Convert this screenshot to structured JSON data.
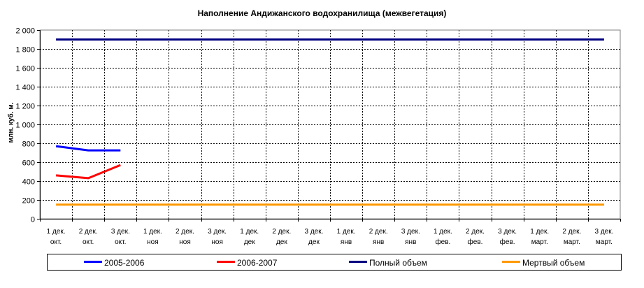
{
  "chart_data": {
    "type": "line",
    "title": "Наполнение Андижанского водохранилища (межвегетация)",
    "xlabel": "",
    "ylabel": "млн. куб. м.",
    "ylim": [
      0,
      2000
    ],
    "yticks": [
      "0",
      "200",
      "400",
      "600",
      "800",
      "1 000",
      "1 200",
      "1 400",
      "1 600",
      "1 800",
      "2 000"
    ],
    "categories": [
      [
        "1 дек.",
        "окт."
      ],
      [
        "2 дек.",
        "окт."
      ],
      [
        "3 дек.",
        "окт."
      ],
      [
        "1 дек.",
        "ноя"
      ],
      [
        "2 дек.",
        "ноя"
      ],
      [
        "3 дек.",
        "ноя"
      ],
      [
        "1 дек.",
        "дек"
      ],
      [
        "2 дек.",
        "дек"
      ],
      [
        "3 дек.",
        "дек"
      ],
      [
        "1 дек.",
        "янв"
      ],
      [
        "2 дек.",
        "янв"
      ],
      [
        "3 дек.",
        "янв"
      ],
      [
        "1 дек.",
        "фев."
      ],
      [
        "2 дек.",
        "фев."
      ],
      [
        "3 дек.",
        "фев."
      ],
      [
        "1 дек.",
        "март."
      ],
      [
        "2 дек.",
        "март."
      ],
      [
        "3 дек.",
        "март."
      ]
    ],
    "series": [
      {
        "name": "2005-2006",
        "color": "#0000ff",
        "values": [
          770,
          725,
          725,
          null,
          null,
          null,
          null,
          null,
          null,
          null,
          null,
          null,
          null,
          null,
          null,
          null,
          null,
          null
        ]
      },
      {
        "name": "2006-2007",
        "color": "#ff0000",
        "values": [
          460,
          430,
          570,
          null,
          null,
          null,
          null,
          null,
          null,
          null,
          null,
          null,
          null,
          null,
          null,
          null,
          null,
          null
        ]
      },
      {
        "name": "Полный объем",
        "color": "#000080",
        "values": [
          1900,
          1900,
          1900,
          1900,
          1900,
          1900,
          1900,
          1900,
          1900,
          1900,
          1900,
          1900,
          1900,
          1900,
          1900,
          1900,
          1900,
          1900
        ]
      },
      {
        "name": "Мертвый объем",
        "color": "#ff9900",
        "values": [
          150,
          150,
          150,
          150,
          150,
          150,
          150,
          150,
          150,
          150,
          150,
          150,
          150,
          150,
          150,
          150,
          150,
          150
        ]
      }
    ],
    "grid": true,
    "legend": "bottom"
  }
}
